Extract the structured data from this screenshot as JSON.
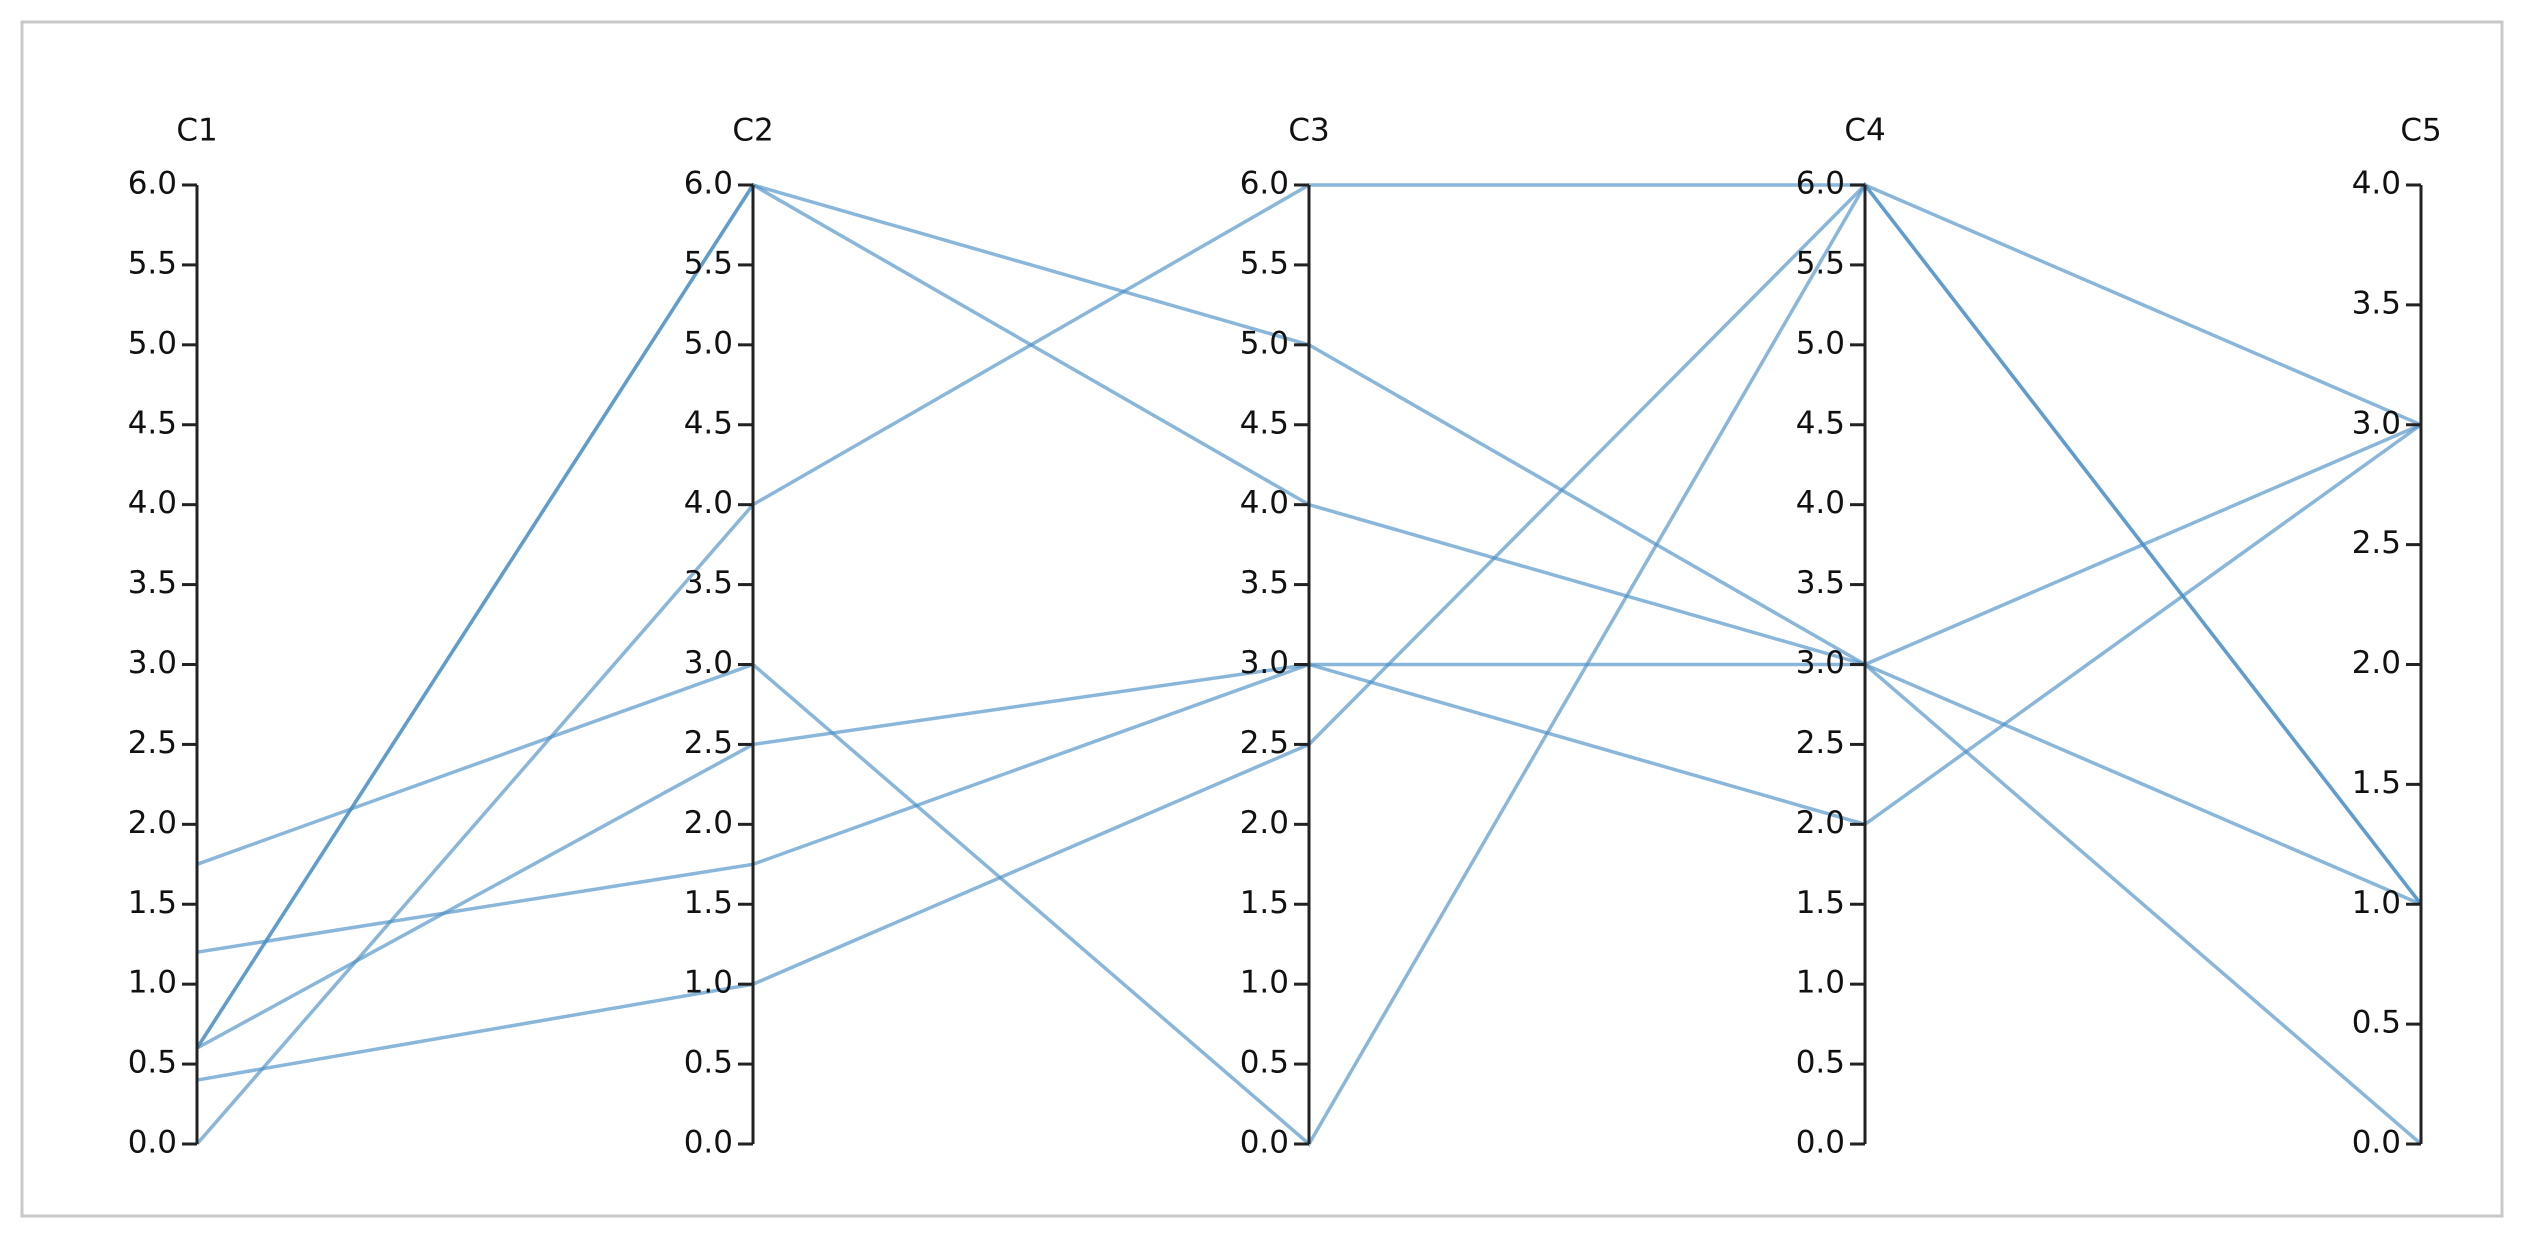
{
  "chart_data": {
    "type": "parallel",
    "axes": [
      {
        "name": "C1",
        "lim": [
          0,
          6
        ],
        "ticks": [
          {
            "value": 0,
            "label": "0.0"
          },
          {
            "value": 0.5,
            "label": "0.5"
          },
          {
            "value": 1,
            "label": "1.0"
          },
          {
            "value": 1.5,
            "label": "1.5"
          },
          {
            "value": 2,
            "label": "2.0"
          },
          {
            "value": 2.5,
            "label": "2.5"
          },
          {
            "value": 3,
            "label": "3.0"
          },
          {
            "value": 3.5,
            "label": "3.5"
          },
          {
            "value": 4,
            "label": "4.0"
          },
          {
            "value": 4.5,
            "label": "4.5"
          },
          {
            "value": 5,
            "label": "5.0"
          },
          {
            "value": 5.5,
            "label": "5.5"
          },
          {
            "value": 6,
            "label": "6.0"
          }
        ]
      },
      {
        "name": "C2",
        "lim": [
          0,
          6
        ],
        "ticks": [
          {
            "value": 0,
            "label": "0.0"
          },
          {
            "value": 0.5,
            "label": "0.5"
          },
          {
            "value": 1,
            "label": "1.0"
          },
          {
            "value": 1.5,
            "label": "1.5"
          },
          {
            "value": 2,
            "label": "2.0"
          },
          {
            "value": 2.5,
            "label": "2.5"
          },
          {
            "value": 3,
            "label": "3.0"
          },
          {
            "value": 3.5,
            "label": "3.5"
          },
          {
            "value": 4,
            "label": "4.0"
          },
          {
            "value": 4.5,
            "label": "4.5"
          },
          {
            "value": 5,
            "label": "5.0"
          },
          {
            "value": 5.5,
            "label": "5.5"
          },
          {
            "value": 6,
            "label": "6.0"
          }
        ]
      },
      {
        "name": "C3",
        "lim": [
          0,
          6
        ],
        "ticks": [
          {
            "value": 0,
            "label": "0.0"
          },
          {
            "value": 0.5,
            "label": "0.5"
          },
          {
            "value": 1,
            "label": "1.0"
          },
          {
            "value": 1.5,
            "label": "1.5"
          },
          {
            "value": 2,
            "label": "2.0"
          },
          {
            "value": 2.5,
            "label": "2.5"
          },
          {
            "value": 3,
            "label": "3.0"
          },
          {
            "value": 3.5,
            "label": "3.5"
          },
          {
            "value": 4,
            "label": "4.0"
          },
          {
            "value": 4.5,
            "label": "4.5"
          },
          {
            "value": 5,
            "label": "5.0"
          },
          {
            "value": 5.5,
            "label": "5.5"
          },
          {
            "value": 6,
            "label": "6.0"
          }
        ]
      },
      {
        "name": "C4",
        "lim": [
          0,
          6
        ],
        "ticks": [
          {
            "value": 0,
            "label": "0.0"
          },
          {
            "value": 0.5,
            "label": "0.5"
          },
          {
            "value": 1,
            "label": "1.0"
          },
          {
            "value": 1.5,
            "label": "1.5"
          },
          {
            "value": 2,
            "label": "2.0"
          },
          {
            "value": 2.5,
            "label": "2.5"
          },
          {
            "value": 3,
            "label": "3.0"
          },
          {
            "value": 3.5,
            "label": "3.5"
          },
          {
            "value": 4,
            "label": "4.0"
          },
          {
            "value": 4.5,
            "label": "4.5"
          },
          {
            "value": 5,
            "label": "5.0"
          },
          {
            "value": 5.5,
            "label": "5.5"
          },
          {
            "value": 6,
            "label": "6.0"
          }
        ]
      },
      {
        "name": "C5",
        "lim": [
          0,
          4
        ],
        "ticks": [
          {
            "value": 0,
            "label": "0.0"
          },
          {
            "value": 0.5,
            "label": "0.5"
          },
          {
            "value": 1,
            "label": "1.0"
          },
          {
            "value": 1.5,
            "label": "1.5"
          },
          {
            "value": 2,
            "label": "2.0"
          },
          {
            "value": 2.5,
            "label": "2.5"
          },
          {
            "value": 3,
            "label": "3.0"
          },
          {
            "value": 3.5,
            "label": "3.5"
          },
          {
            "value": 4,
            "label": "4.0"
          }
        ]
      }
    ],
    "color": "#4a8fc4",
    "lines": [
      {
        "values": [
          0.6,
          6,
          5,
          3,
          3
        ]
      },
      {
        "values": [
          0.6,
          6,
          4,
          3,
          1
        ]
      },
      {
        "values": [
          0.6,
          2.5,
          3,
          3,
          0
        ]
      },
      {
        "values": [
          1.2,
          1.75,
          3,
          2,
          3
        ]
      },
      {
        "values": [
          0,
          4,
          6,
          6,
          3
        ]
      },
      {
        "values": [
          1.75,
          3,
          0,
          6,
          1
        ]
      },
      {
        "values": [
          0.4,
          1,
          2.5,
          6,
          1
        ]
      }
    ]
  }
}
